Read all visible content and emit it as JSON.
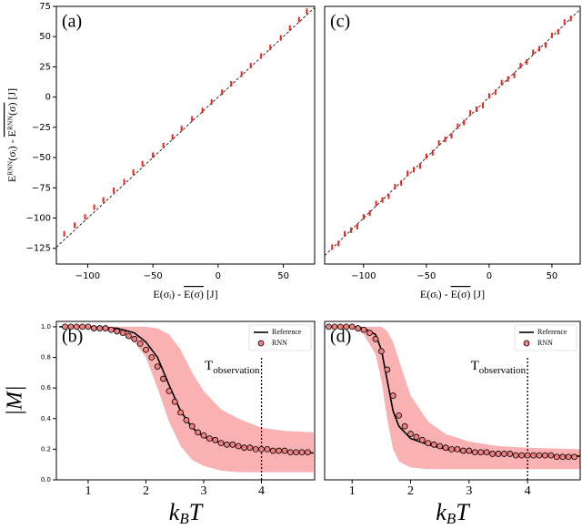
{
  "chart_data": [
    {
      "type": "scatter",
      "panel_label": "(a)",
      "y_label": [
        "Eᴿᴺᴺ(σᵢ) - ",
        "Eᴿᴺᴺ(σ)",
        " [J]"
      ],
      "x_label": [
        "E(σᵢ) - ",
        "E(σ)",
        " [J]"
      ],
      "color": "#e8241c",
      "x": [
        -118,
        -110,
        -102,
        -95,
        -88,
        -80,
        -72,
        -65,
        -58,
        -50,
        -42,
        -35,
        -28,
        -20,
        -12,
        -5,
        3,
        10,
        18,
        25,
        33,
        40,
        48,
        55,
        62,
        68
      ],
      "y": [
        -113,
        -106,
        -99,
        -91,
        -85,
        -77,
        -70,
        -62,
        -55,
        -48,
        -40,
        -33,
        -26,
        -18,
        -11,
        -4,
        4,
        11,
        19,
        26,
        34,
        41,
        49,
        57,
        64,
        71
      ],
      "xlim": [
        -124,
        74
      ],
      "ylim": [
        -138,
        75
      ],
      "xticks": [
        {
          "value": -100,
          "label": "−100"
        },
        {
          "value": -50,
          "label": "−50"
        },
        0,
        50
      ],
      "yticks": [
        {
          "value": -125,
          "label": "−125"
        },
        {
          "value": -100,
          "label": "−100"
        },
        {
          "value": -75,
          "label": "−75"
        },
        {
          "value": -50,
          "label": "−50"
        },
        {
          "value": -25,
          "label": "−25"
        },
        0,
        25,
        50,
        75
      ]
    },
    {
      "type": "line",
      "panel_label": "(b)",
      "y_label": "|M|",
      "x_label": [
        "k",
        "B",
        "T"
      ],
      "annotation": [
        "T",
        "observation"
      ],
      "vline_x": 4,
      "series": [
        {
          "name": "Reference",
          "color": "#000000",
          "x": [
            0.5,
            1,
            1.5,
            1.8,
            2,
            2.2,
            2.4,
            2.6,
            2.8,
            3,
            3.3,
            3.6,
            4,
            4.4,
            4.9
          ],
          "values": [
            1,
            1,
            0.99,
            0.96,
            0.9,
            0.8,
            0.62,
            0.45,
            0.34,
            0.28,
            0.24,
            0.22,
            0.2,
            0.19,
            0.175
          ]
        },
        {
          "name": "RNN",
          "color": "#f08080",
          "x": [
            0.6,
            0.7,
            0.8,
            0.9,
            1.0,
            1.1,
            1.2,
            1.3,
            1.4,
            1.5,
            1.6,
            1.7,
            1.8,
            1.9,
            2.0,
            2.1,
            2.2,
            2.3,
            2.4,
            2.5,
            2.6,
            2.7,
            2.8,
            2.9,
            3.0,
            3.1,
            3.2,
            3.3,
            3.4,
            3.5,
            3.6,
            3.7,
            3.8,
            3.9,
            4.0,
            4.1,
            4.2,
            4.3,
            4.4,
            4.5,
            4.6,
            4.7,
            4.8
          ],
          "values": [
            1,
            1,
            1,
            1,
            1,
            0.99,
            0.99,
            0.99,
            0.98,
            0.97,
            0.96,
            0.94,
            0.92,
            0.89,
            0.85,
            0.8,
            0.74,
            0.66,
            0.58,
            0.51,
            0.44,
            0.39,
            0.35,
            0.31,
            0.29,
            0.27,
            0.26,
            0.24,
            0.23,
            0.23,
            0.22,
            0.21,
            0.21,
            0.2,
            0.2,
            0.2,
            0.19,
            0.19,
            0.19,
            0.18,
            0.18,
            0.18,
            0.18
          ]
        }
      ],
      "band": {
        "color": "#f9a3a3",
        "x": [
          0.5,
          1,
          1.5,
          1.8,
          2,
          2.2,
          2.4,
          2.6,
          2.8,
          3,
          3.3,
          3.6,
          4,
          4.4,
          4.9
        ],
        "lower": [
          1,
          1,
          0.97,
          0.9,
          0.8,
          0.6,
          0.38,
          0.22,
          0.13,
          0.09,
          0.06,
          0.05,
          0.05,
          0.05,
          0.05
        ],
        "upper": [
          1,
          1,
          1,
          1,
          1,
          0.99,
          0.95,
          0.85,
          0.7,
          0.58,
          0.46,
          0.4,
          0.34,
          0.32,
          0.31
        ]
      },
      "xlim": [
        0.45,
        4.92
      ],
      "ylim": [
        0,
        1.035
      ],
      "xticks": [
        1,
        2,
        3,
        4
      ],
      "yticks": [
        {
          "value": 0,
          "label": "0.0"
        },
        0.2,
        0.4,
        0.6,
        0.8,
        {
          "value": 1,
          "label": "1.0"
        }
      ]
    },
    {
      "type": "scatter",
      "panel_label": "(c)",
      "x_label": [
        "E(σᵢ) - ",
        "E(σ)",
        " [J]"
      ],
      "color": "#e8241c",
      "x": [
        -125,
        -120,
        -115,
        -110,
        -105,
        -100,
        -95,
        -90,
        -85,
        -80,
        -75,
        -70,
        -65,
        -60,
        -55,
        -50,
        -45,
        -40,
        -35,
        -30,
        -25,
        -20,
        -15,
        -10,
        -5,
        0,
        5,
        10,
        15,
        20,
        25,
        30,
        35,
        40,
        45,
        50,
        55,
        60,
        65
      ],
      "y": [
        -124,
        -121,
        -113,
        -110,
        -107,
        -99,
        -96,
        -88,
        -85,
        -82,
        -74,
        -71,
        -63,
        -60,
        -57,
        -49,
        -46,
        -38,
        -35,
        -32,
        -24,
        -21,
        -13,
        -10,
        -7,
        1,
        4,
        12,
        15,
        18,
        26,
        29,
        37,
        40,
        43,
        51,
        54,
        62,
        65
      ],
      "xlim": [
        -131,
        72.5
      ],
      "ylim": [
        -138,
        75
      ],
      "xticks": [
        {
          "value": -100,
          "label": "−100"
        },
        {
          "value": -50,
          "label": "−50"
        },
        0,
        50
      ]
    },
    {
      "type": "line",
      "panel_label": "(d)",
      "x_label": [
        "k",
        "B",
        "T"
      ],
      "annotation": [
        "T",
        "observation"
      ],
      "vline_x": 4,
      "series": [
        {
          "name": "Reference",
          "color": "#000000",
          "x": [
            0.55,
            1,
            1.2,
            1.4,
            1.5,
            1.6,
            1.7,
            1.8,
            2,
            2.3,
            2.6,
            3,
            3.5,
            4,
            4.9
          ],
          "values": [
            1,
            1,
            0.99,
            0.95,
            0.85,
            0.65,
            0.45,
            0.35,
            0.27,
            0.23,
            0.2,
            0.18,
            0.17,
            0.16,
            0.155
          ]
        },
        {
          "name": "RNN",
          "color": "#f08080",
          "x": [
            0.6,
            0.7,
            0.8,
            0.9,
            1.0,
            1.1,
            1.2,
            1.3,
            1.4,
            1.5,
            1.6,
            1.7,
            1.8,
            1.9,
            2.0,
            2.1,
            2.2,
            2.3,
            2.4,
            2.5,
            2.6,
            2.7,
            2.8,
            2.9,
            3.0,
            3.1,
            3.2,
            3.3,
            3.4,
            3.5,
            3.6,
            3.7,
            3.8,
            3.9,
            4.0,
            4.1,
            4.2,
            4.3,
            4.4,
            4.5,
            4.6,
            4.7,
            4.8
          ],
          "values": [
            1,
            1,
            1,
            1,
            1,
            0.99,
            0.98,
            0.96,
            0.92,
            0.84,
            0.72,
            0.55,
            0.42,
            0.35,
            0.3,
            0.28,
            0.26,
            0.24,
            0.23,
            0.22,
            0.21,
            0.2,
            0.2,
            0.19,
            0.19,
            0.18,
            0.18,
            0.18,
            0.17,
            0.17,
            0.17,
            0.17,
            0.16,
            0.16,
            0.16,
            0.16,
            0.16,
            0.16,
            0.16,
            0.15,
            0.15,
            0.15,
            0.15
          ]
        }
      ],
      "band": {
        "color": "#f9a3a3",
        "x": [
          0.55,
          1,
          1.2,
          1.4,
          1.5,
          1.6,
          1.7,
          1.8,
          2,
          2.3,
          2.6,
          3,
          3.5,
          4,
          4.9
        ],
        "lower": [
          1,
          1,
          0.95,
          0.82,
          0.65,
          0.4,
          0.2,
          0.12,
          0.08,
          0.07,
          0.07,
          0.07,
          0.07,
          0.07,
          0.07
        ],
        "upper": [
          1,
          1,
          1,
          1,
          1,
          0.97,
          0.9,
          0.78,
          0.55,
          0.38,
          0.3,
          0.25,
          0.22,
          0.21,
          0.2
        ]
      },
      "xlim": [
        0.53,
        4.9
      ],
      "ylim": [
        0,
        1.035
      ],
      "xticks": [
        1,
        2,
        3,
        4
      ]
    }
  ]
}
